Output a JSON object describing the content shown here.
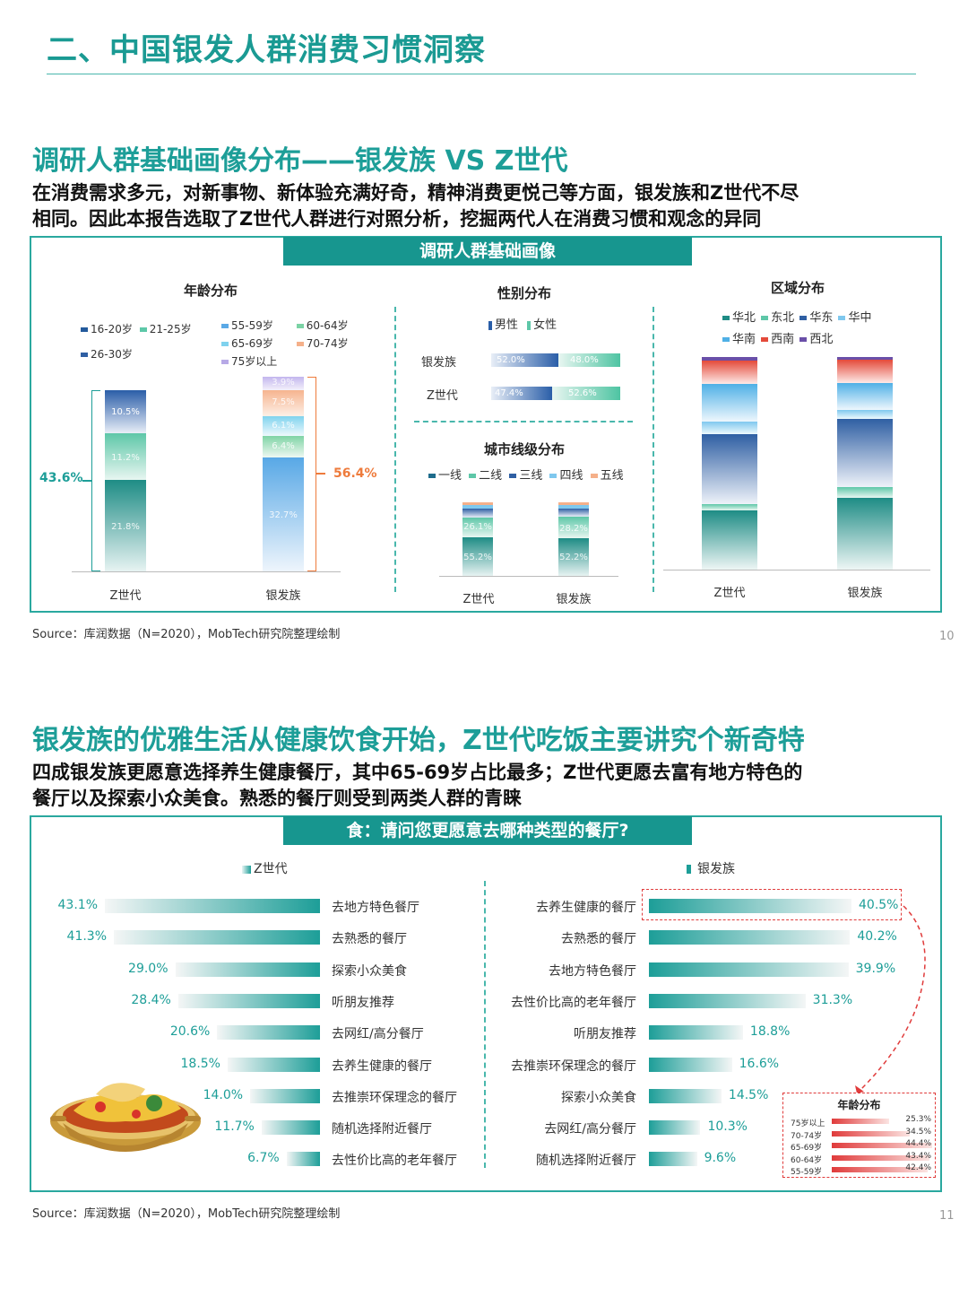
{
  "header": {
    "title": "二、中国银发人群消费习惯洞察"
  },
  "section1": {
    "title": "调研人群基础画像分布——银发族 VS Z世代",
    "desc_line1": "在消费需求多元，对新事物、新体验充满好奇，精神消费更悦己等方面，银发族和Z世代不尽",
    "desc_line2": "相同。因此本报告选取了Z世代人群进行对照分析，挖掘两代人在消费习惯和观念的异同",
    "banner": "调研人群基础画像",
    "age": {
      "title": "年龄分布",
      "legend_z": [
        "16-20岁",
        "21-25岁",
        "26-30岁"
      ],
      "legend_s": [
        "55-59岁",
        "60-64岁",
        "65-69岁",
        "70-74岁",
        "75岁以上"
      ],
      "z_values": [
        "21.8%",
        "11.2%",
        "10.5%"
      ],
      "s_values": [
        "32.7%",
        "6.4%",
        "6.1%",
        "7.5%",
        "3.9%"
      ],
      "z_total": "43.6%",
      "s_total": "56.4%",
      "x_labels": [
        "Z世代",
        "银发族"
      ]
    },
    "gender": {
      "title": "性别分布",
      "legend": [
        "男性",
        "女性"
      ],
      "rows": [
        {
          "label": "银发族",
          "male": "52.0%",
          "female": "48.0%"
        },
        {
          "label": "Z世代",
          "male": "47.4%",
          "female": "52.6%"
        }
      ]
    },
    "city": {
      "title": "城市线级分布",
      "legend": [
        "一线",
        "二线",
        "三线",
        "四线",
        "五线"
      ],
      "z_values": [
        "55.2%",
        "26.1%"
      ],
      "s_values": [
        "52.2%",
        "28.2%"
      ],
      "x_labels": [
        "Z世代",
        "银发族"
      ]
    },
    "region": {
      "title": "区域分布",
      "legend_row1": [
        "华北",
        "东北",
        "华东",
        "华中"
      ],
      "legend_row2": [
        "华南",
        "西南",
        "西北"
      ],
      "x_labels": [
        "Z世代",
        "银发族"
      ]
    },
    "source": "Source：库润数据（N=2020），MobTech研究院整理绘制",
    "page": "10"
  },
  "section2": {
    "title": "银发族的优雅生活从健康饮食开始，Z世代吃饭主要讲究个新奇特",
    "desc_line1": "四成银发族更愿意选择养生健康餐厅，其中65-69岁占比最多；Z世代更愿去富有地方特色的",
    "desc_line2": "餐厅以及探索小众美食。熟悉的餐厅则受到两类人群的青睐",
    "banner": "食：请问您更愿意去哪种类型的餐厅?",
    "z_legend": "Z世代",
    "s_legend": "银发族",
    "z_bars": [
      {
        "label": "去地方特色餐厅",
        "value": "43.1%",
        "pct": 43.1
      },
      {
        "label": "去熟悉的餐厅",
        "value": "41.3%",
        "pct": 41.3
      },
      {
        "label": "探索小众美食",
        "value": "29.0%",
        "pct": 29.0
      },
      {
        "label": "听朋友推荐",
        "value": "28.4%",
        "pct": 28.4
      },
      {
        "label": "去网红/高分餐厅",
        "value": "20.6%",
        "pct": 20.6
      },
      {
        "label": "去养生健康的餐厅",
        "value": "18.5%",
        "pct": 18.5
      },
      {
        "label": "去推崇环保理念的餐厅",
        "value": "14.0%",
        "pct": 14.0
      },
      {
        "label": "随机选择附近餐厅",
        "value": "11.7%",
        "pct": 11.7
      },
      {
        "label": "去性价比高的老年餐厅",
        "value": "6.7%",
        "pct": 6.7
      }
    ],
    "s_bars": [
      {
        "label": "去养生健康的餐厅",
        "value": "40.5%",
        "pct": 40.5
      },
      {
        "label": "去熟悉的餐厅",
        "value": "40.2%",
        "pct": 40.2
      },
      {
        "label": "去地方特色餐厅",
        "value": "39.9%",
        "pct": 39.9
      },
      {
        "label": "去性价比高的老年餐厅",
        "value": "31.3%",
        "pct": 31.3
      },
      {
        "label": "听朋友推荐",
        "value": "18.8%",
        "pct": 18.8
      },
      {
        "label": "去推崇环保理念的餐厅",
        "value": "16.6%",
        "pct": 16.6
      },
      {
        "label": "探索小众美食",
        "value": "14.5%",
        "pct": 14.5
      },
      {
        "label": "去网红/高分餐厅",
        "value": "10.3%",
        "pct": 10.3
      },
      {
        "label": "随机选择附近餐厅",
        "value": "9.6%",
        "pct": 9.6
      }
    ],
    "age_box": {
      "title": "年龄分布",
      "rows": [
        {
          "label": "75岁以上",
          "value": "25.3%",
          "pct": 25.3
        },
        {
          "label": "70-74岁",
          "value": "34.5%",
          "pct": 34.5
        },
        {
          "label": "65-69岁",
          "value": "44.4%",
          "pct": 44.4
        },
        {
          "label": "60-64岁",
          "value": "43.4%",
          "pct": 43.4
        },
        {
          "label": "55-59岁",
          "value": "42.4%",
          "pct": 42.4
        }
      ]
    },
    "source": "Source：库润数据（N=2020），MobTech研究院整理绘制",
    "page": "11"
  },
  "colors": {
    "teal": "#1d9e98",
    "orange": "#ee7b3c",
    "red": "#e03b3b",
    "blue": "#2f63b8"
  }
}
